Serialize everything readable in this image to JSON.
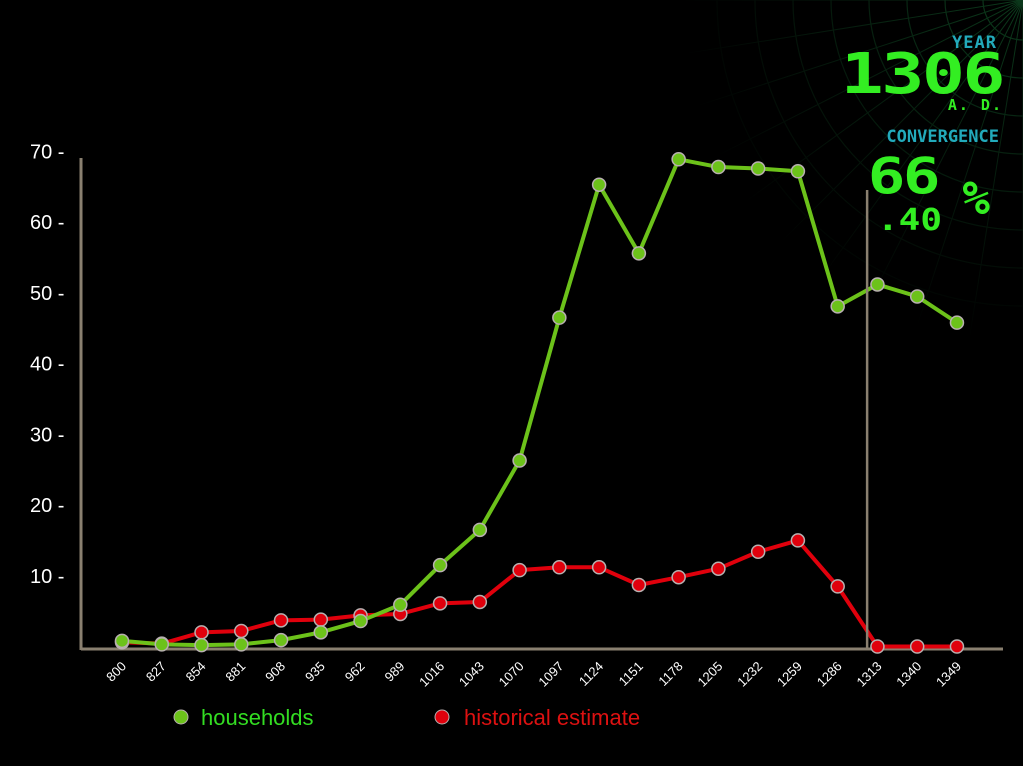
{
  "hud": {
    "year_label": "YEAR",
    "year_value": "1306",
    "era": "A. D.",
    "convergence_label": "CONVERGENCE",
    "convergence_whole": "66",
    "convergence_decimal": ".40",
    "percent_sign": "%"
  },
  "colors": {
    "households": "#6cc21a",
    "households_legend_text": "#33dd22",
    "historical": "#e0000c",
    "historical_legend_text": "#dd1111",
    "axis": "#8a8070",
    "hud_green": "#33ee22",
    "hud_cyan": "#22aabb",
    "hud_grid": "#0c3a1c"
  },
  "chart_data": {
    "type": "line",
    "categories": [
      "800",
      "827",
      "854",
      "881",
      "908",
      "935",
      "962",
      "989",
      "1016",
      "1043",
      "1070",
      "1097",
      "1124",
      "1151",
      "1178",
      "1205",
      "1232",
      "1259",
      "1286",
      "1313",
      "1340",
      "1349"
    ],
    "y_ticks": [
      10,
      20,
      30,
      40,
      50,
      60,
      70
    ],
    "ylim": [
      0,
      70
    ],
    "current_year": 1306,
    "series": [
      {
        "name": "households",
        "values": [
          0.8,
          0.3,
          0.2,
          0.3,
          0.9,
          2.0,
          3.6,
          5.9,
          11.5,
          16.5,
          26.3,
          46.5,
          65.3,
          55.6,
          68.9,
          67.8,
          67.6,
          67.2,
          48.1,
          51.2,
          49.5,
          45.8
        ]
      },
      {
        "name": "historical estimate",
        "values": [
          0.6,
          0.4,
          2.0,
          2.2,
          3.7,
          3.8,
          4.4,
          4.6,
          6.1,
          6.3,
          10.8,
          11.2,
          11.2,
          8.7,
          9.8,
          11.0,
          13.4,
          15.0,
          8.5,
          0.0,
          0.0,
          0.0
        ]
      }
    ],
    "legend_position": "bottom"
  }
}
